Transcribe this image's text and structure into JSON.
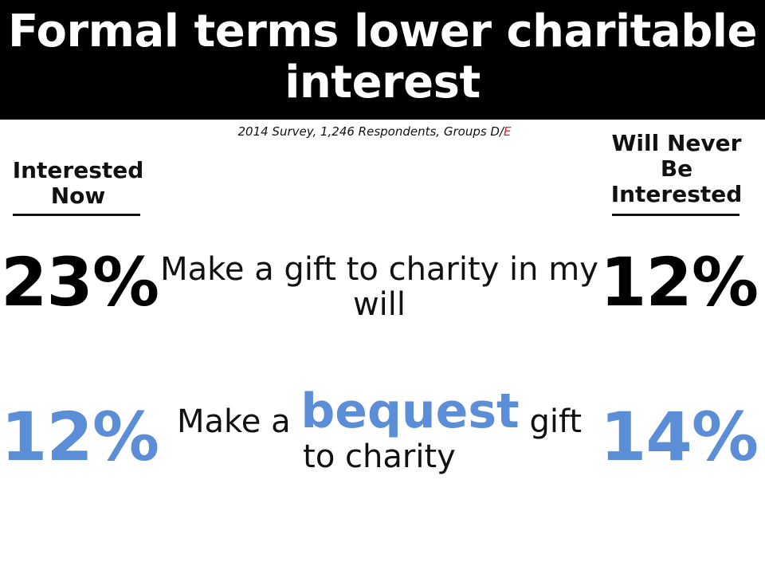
{
  "slide": {
    "title": "Formal terms lower charitable interest",
    "subtitle_main": "2014 Survey, 1,246 Respondents, Groups D/",
    "subtitle_accent": "E"
  },
  "columns": {
    "left_header": "Interested Now",
    "right_header": "Will Never Be Interested"
  },
  "rows": [
    {
      "left_value": "23%",
      "label": "Make a gift to charity in my will",
      "right_value": "12%",
      "color": "#000000"
    },
    {
      "left_value": "12%",
      "label_pre": "Make a",
      "label_emphasis": "bequest",
      "label_post": "gift to charity",
      "right_value": "14%",
      "color": "#5b8ed6"
    }
  ],
  "colors": {
    "title_bg": "#000000",
    "title_text": "#ffffff",
    "emphasis_blue": "#5b8ed6",
    "subtitle_accent": "#cc2222"
  }
}
